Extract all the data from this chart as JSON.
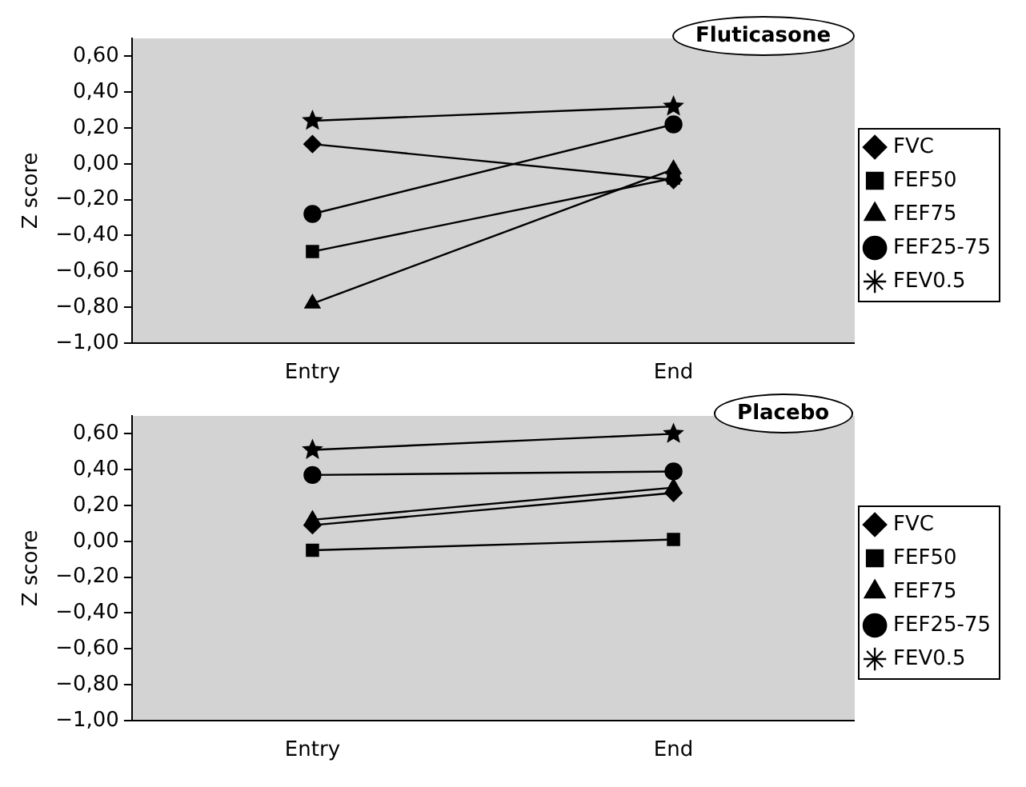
{
  "chart_data": [
    {
      "type": "line",
      "title": "Fluticasone",
      "ylabel": "Z score",
      "categories": [
        "Entry",
        "End"
      ],
      "series": [
        {
          "name": "FVC",
          "color": "#000000",
          "marker": "diamond",
          "values": [
            0.11,
            -0.09
          ]
        },
        {
          "name": "FEF50",
          "color": "#000000",
          "marker": "square",
          "values": [
            -0.49,
            -0.08
          ]
        },
        {
          "name": "FEF75",
          "color": "#000000",
          "marker": "triangle",
          "values": [
            -0.78,
            -0.03
          ]
        },
        {
          "name": "FEF25-75",
          "color": "#000000",
          "marker": "circle",
          "values": [
            -0.28,
            0.22
          ]
        },
        {
          "name": "FEV0.5",
          "color": "#000000",
          "marker": "star",
          "values": [
            0.24,
            0.32
          ]
        }
      ],
      "ylim": [
        -1,
        0.7
      ],
      "yticks": [
        {
          "value": -1,
          "label": "−1,00"
        },
        {
          "value": -0.8,
          "label": "−0,80"
        },
        {
          "value": -0.6,
          "label": "−0,60"
        },
        {
          "value": -0.4,
          "label": "−0,40"
        },
        {
          "value": -0.2,
          "label": "−0,20"
        },
        {
          "value": 0,
          "label": "0,00"
        },
        {
          "value": 0.2,
          "label": "0,20"
        },
        {
          "value": 0.4,
          "label": "0,40"
        },
        {
          "value": 0.6,
          "label": "0,60"
        }
      ],
      "grid": false,
      "legend": "right"
    },
    {
      "type": "line",
      "title": "Placebo",
      "ylabel": "Z score",
      "categories": [
        "Entry",
        "End"
      ],
      "series": [
        {
          "name": "FVC",
          "color": "#000000",
          "marker": "diamond",
          "values": [
            0.09,
            0.27
          ]
        },
        {
          "name": "FEF50",
          "color": "#000000",
          "marker": "square",
          "values": [
            -0.05,
            0.01
          ]
        },
        {
          "name": "FEF75",
          "color": "#000000",
          "marker": "triangle",
          "values": [
            0.12,
            0.3
          ]
        },
        {
          "name": "FEF25-75",
          "color": "#000000",
          "marker": "circle",
          "values": [
            0.37,
            0.39
          ]
        },
        {
          "name": "FEV0.5",
          "color": "#000000",
          "marker": "star",
          "values": [
            0.51,
            0.6
          ]
        }
      ],
      "ylim": [
        -1,
        0.7
      ],
      "yticks": [
        {
          "value": -1,
          "label": "−1,00"
        },
        {
          "value": -0.8,
          "label": "−0,80"
        },
        {
          "value": -0.6,
          "label": "−0,60"
        },
        {
          "value": -0.4,
          "label": "−0,40"
        },
        {
          "value": -0.2,
          "label": "−0,20"
        },
        {
          "value": 0,
          "label": "0,00"
        },
        {
          "value": 0.2,
          "label": "0,20"
        },
        {
          "value": 0.4,
          "label": "0,40"
        },
        {
          "value": 0.6,
          "label": "0,60"
        }
      ],
      "grid": false,
      "legend": "right"
    }
  ]
}
